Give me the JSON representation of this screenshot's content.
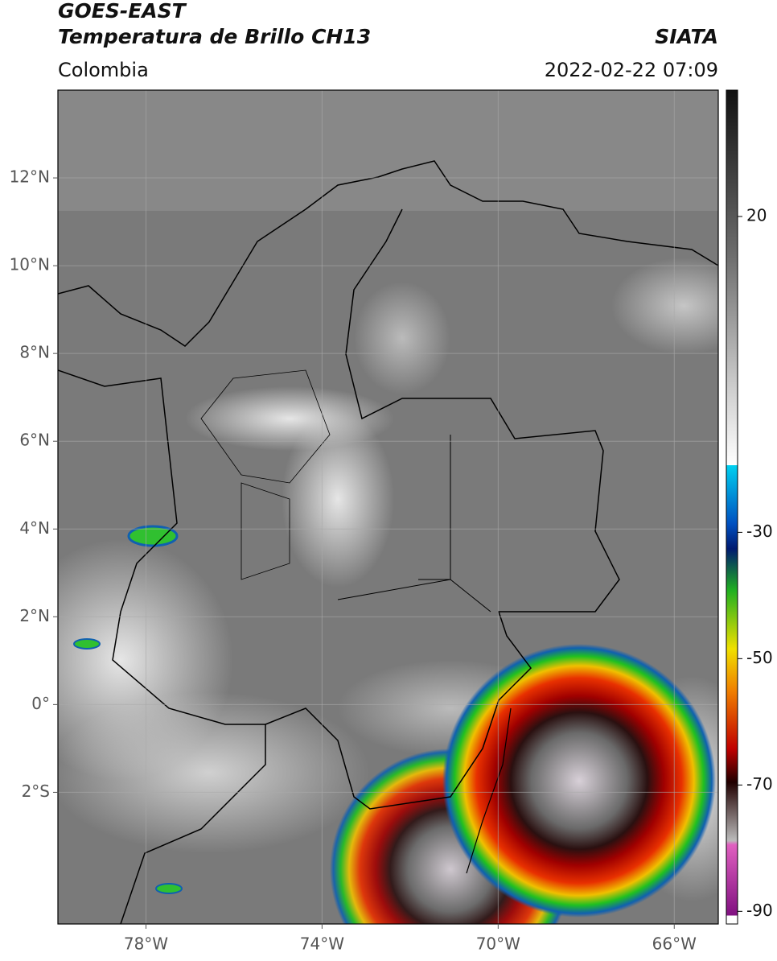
{
  "header": {
    "title": "GOES-EAST",
    "subtitle": "Temperatura de Brillo CH13",
    "region": "Colombia",
    "source": "SIATA",
    "datetime": "2022-02-22 07:09"
  },
  "map": {
    "xlim": [
      -80,
      -65
    ],
    "ylim": [
      -5,
      14
    ],
    "xticks": [
      {
        "value": -78,
        "label": "78°W"
      },
      {
        "value": -74,
        "label": "74°W"
      },
      {
        "value": -70,
        "label": "70°W"
      },
      {
        "value": -66,
        "label": "66°W"
      }
    ],
    "yticks": [
      {
        "value": 12,
        "label": "12°N"
      },
      {
        "value": 10,
        "label": "10°N"
      },
      {
        "value": 8,
        "label": "8°N"
      },
      {
        "value": 6,
        "label": "6°N"
      },
      {
        "value": 4,
        "label": "4°N"
      },
      {
        "value": 2,
        "label": "2°N"
      },
      {
        "value": 0,
        "label": "0°"
      },
      {
        "value": -2,
        "label": "2°S"
      }
    ]
  },
  "colorbar": {
    "lim": [
      -92,
      40
    ],
    "ticks": [
      20,
      -30,
      -50,
      -70,
      -90
    ]
  }
}
